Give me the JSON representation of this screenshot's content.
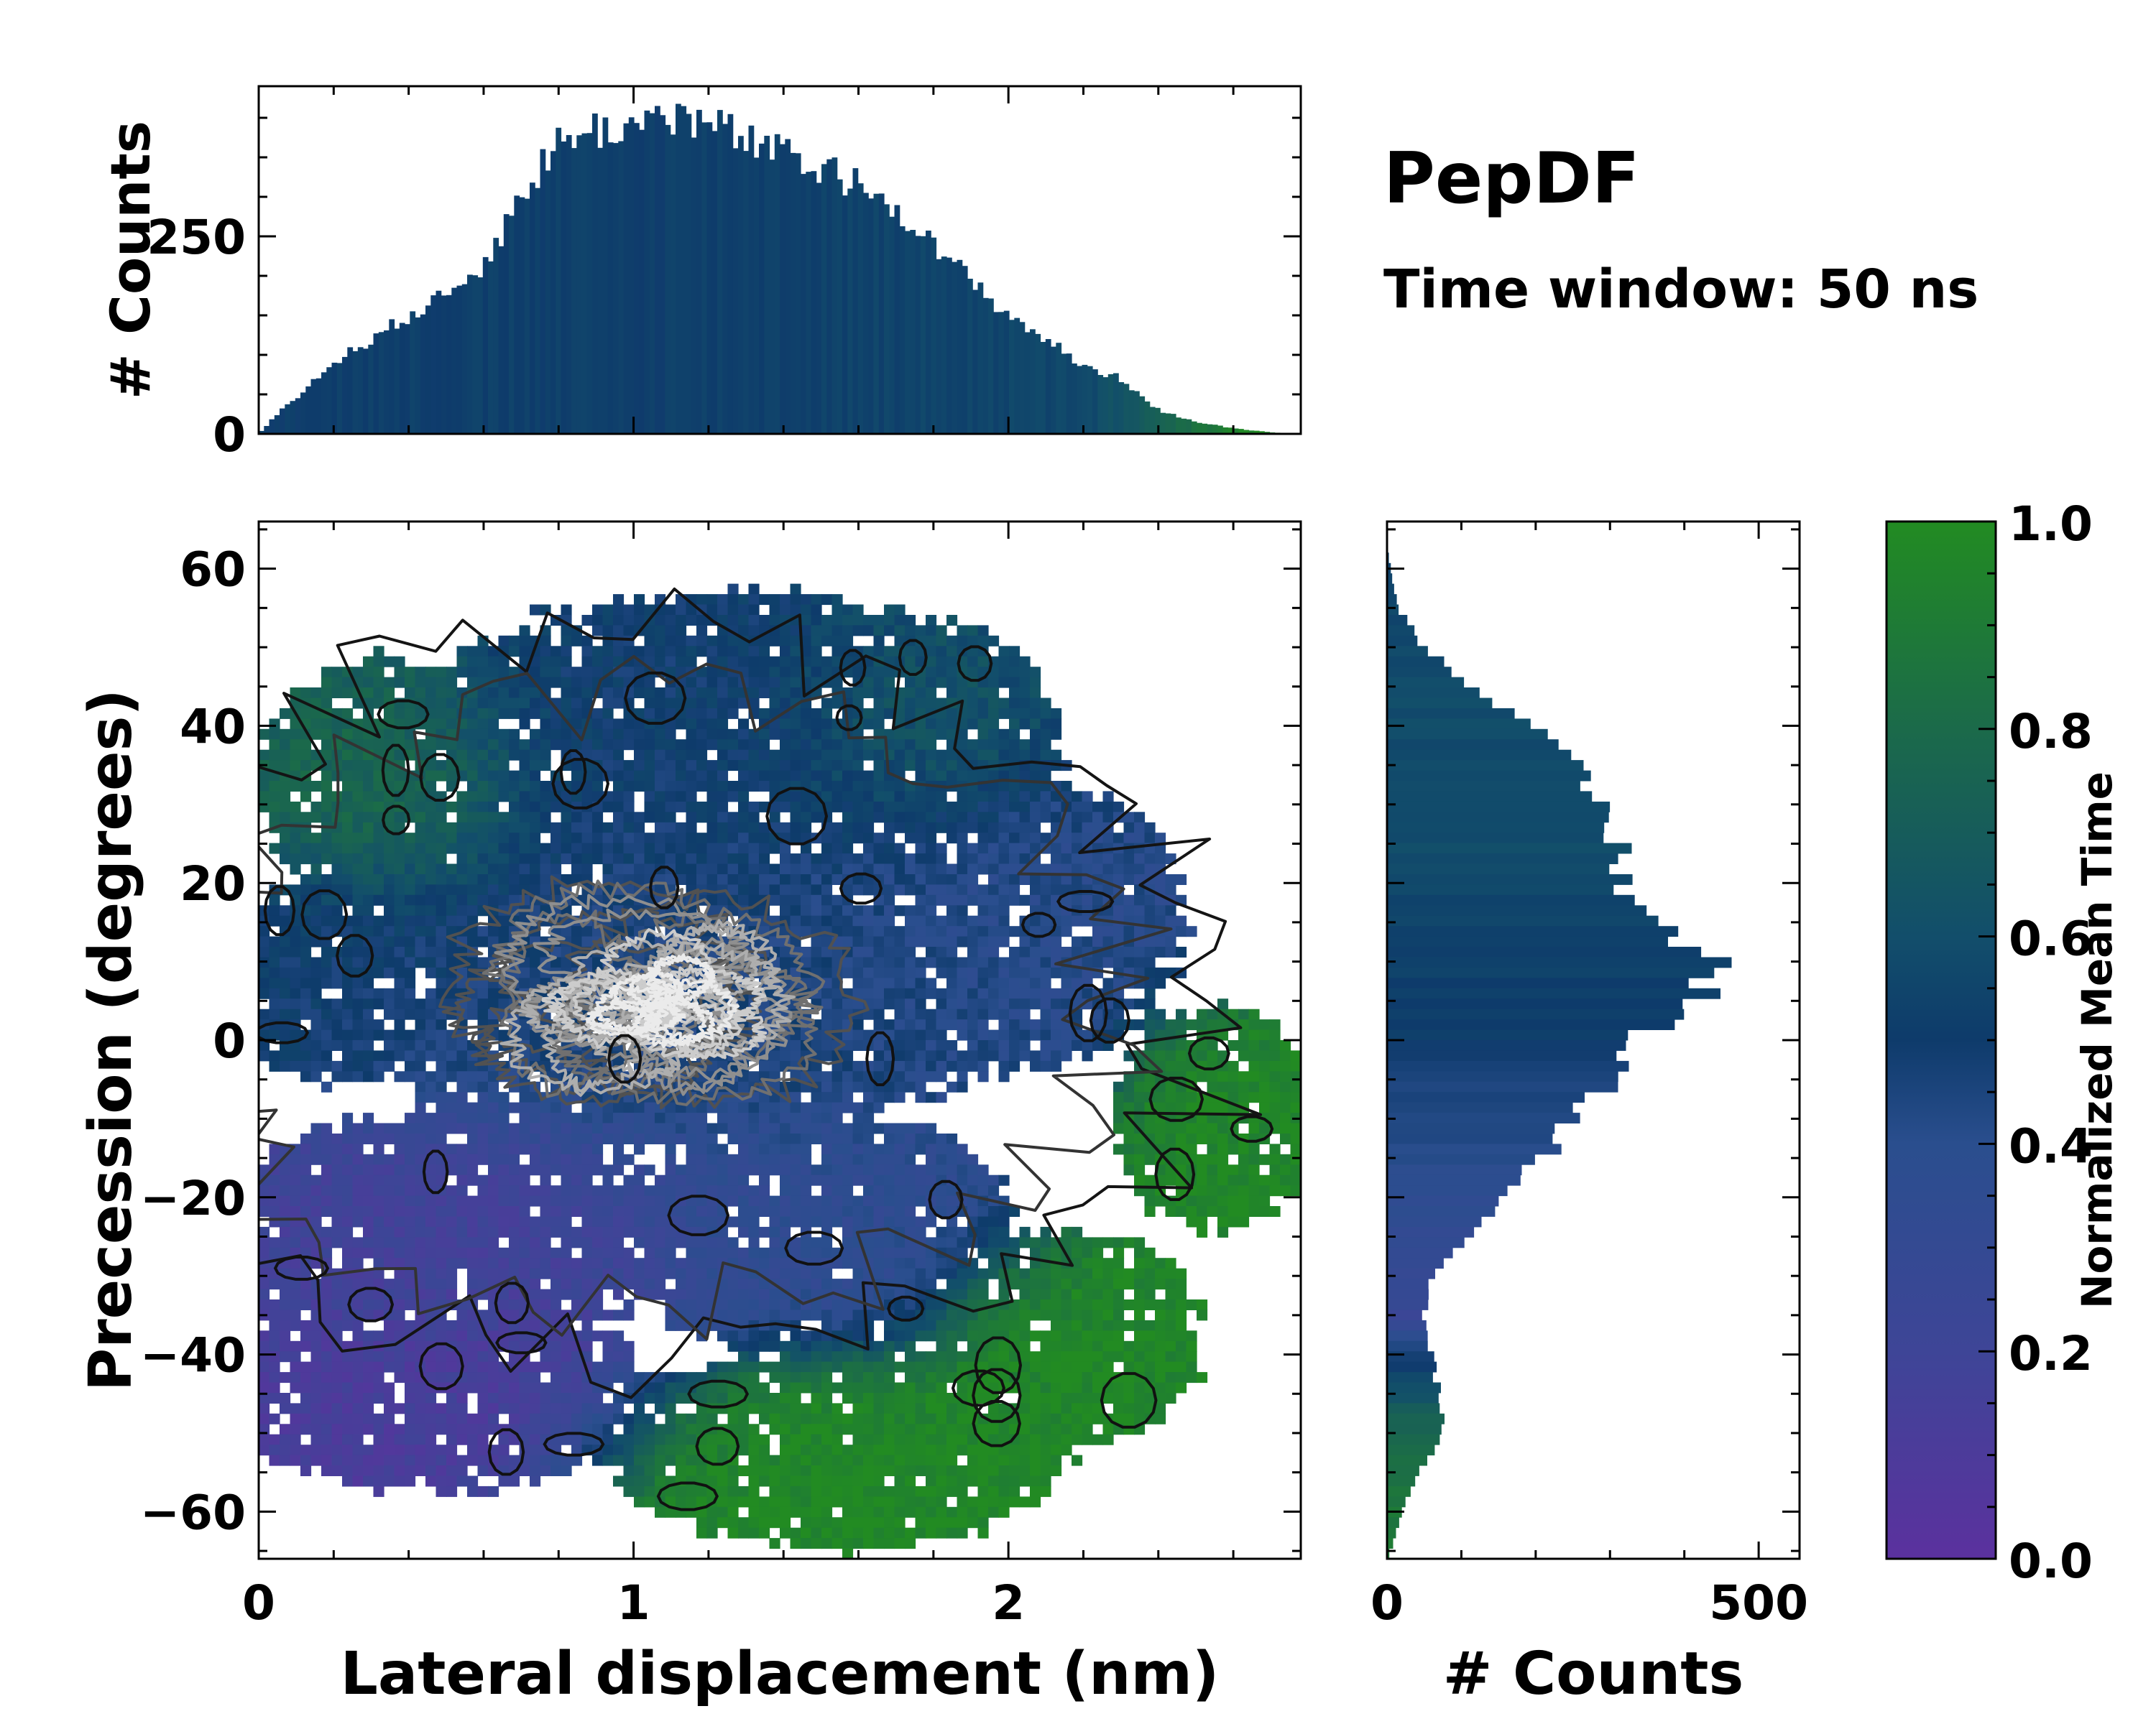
{
  "chart_data": [
    {
      "panel": "top-marginal",
      "type": "bar",
      "ylabel": "# Counts",
      "xlim": [
        0,
        2.78
      ],
      "ylim": [
        0,
        440
      ],
      "yticks": [
        0,
        250
      ],
      "ytick_labels": [
        "0",
        "250"
      ],
      "bin_width": 0.0139,
      "x_profile": [
        [
          0.0,
          0
        ],
        [
          0.05,
          25
        ],
        [
          0.2,
          90
        ],
        [
          0.35,
          135
        ],
        [
          0.5,
          175
        ],
        [
          0.6,
          215
        ],
        [
          0.7,
          300
        ],
        [
          0.8,
          370
        ],
        [
          0.9,
          385
        ],
        [
          1.0,
          390
        ],
        [
          1.1,
          405
        ],
        [
          1.2,
          392
        ],
        [
          1.3,
          372
        ],
        [
          1.4,
          352
        ],
        [
          1.5,
          335
        ],
        [
          1.6,
          315
        ],
        [
          1.7,
          292
        ],
        [
          1.8,
          235
        ],
        [
          1.9,
          195
        ],
        [
          2.0,
          150
        ],
        [
          2.1,
          120
        ],
        [
          2.2,
          85
        ],
        [
          2.3,
          70
        ],
        [
          2.4,
          30
        ],
        [
          2.5,
          15
        ],
        [
          2.6,
          7
        ],
        [
          2.7,
          2
        ],
        [
          2.78,
          0
        ]
      ],
      "mean_time_profile": [
        [
          0.0,
          0.52
        ],
        [
          1.0,
          0.52
        ],
        [
          2.2,
          0.56
        ],
        [
          2.4,
          0.72
        ],
        [
          2.6,
          0.95
        ],
        [
          2.78,
          1.0
        ]
      ]
    },
    {
      "panel": "main",
      "type": "heatmap",
      "xlabel": "Lateral displacement (nm)",
      "ylabel": "Precession (degrees)",
      "xlim": [
        0,
        2.78
      ],
      "ylim": [
        -66,
        66
      ],
      "xticks": [
        0,
        1,
        2
      ],
      "xtick_labels": [
        "0",
        "1",
        "2"
      ],
      "yticks": [
        60,
        40,
        20,
        0,
        -20,
        -40,
        -60
      ],
      "ytick_labels": [
        "60",
        "40",
        "20",
        "0",
        "−20",
        "−40",
        "−60"
      ],
      "cell_size": {
        "x": 0.0278,
        "y": 1.32
      },
      "regions": [
        {
          "name": "upper-left",
          "cx": 0.35,
          "cy": 33,
          "rx": 0.34,
          "ry": 15,
          "t": 0.8
        },
        {
          "name": "upper-center",
          "cx": 1.25,
          "cy": 38,
          "rx": 0.85,
          "ry": 18,
          "t": 0.5
        },
        {
          "name": "upper-right",
          "cx": 1.75,
          "cy": 40,
          "rx": 0.35,
          "ry": 13,
          "t": 0.68
        },
        {
          "name": "center",
          "cx": 1.1,
          "cy": 8,
          "rx": 0.95,
          "ry": 20,
          "t": 0.45
        },
        {
          "name": "left-middle",
          "cx": 0.2,
          "cy": 8,
          "rx": 0.3,
          "ry": 13,
          "t": 0.5
        },
        {
          "name": "right-middle",
          "cx": 2.0,
          "cy": 15,
          "rx": 0.45,
          "ry": 18,
          "t": 0.4
        },
        {
          "name": "lower-left",
          "cx": 0.5,
          "cy": -25,
          "rx": 0.6,
          "ry": 15,
          "t": 0.18
        },
        {
          "name": "bottom-left",
          "cx": 0.48,
          "cy": -45,
          "rx": 0.55,
          "ry": 12,
          "t": 0.12
        },
        {
          "name": "lower-center",
          "cx": 1.5,
          "cy": -25,
          "rx": 0.5,
          "ry": 15,
          "t": 0.35
        },
        {
          "name": "bottom-center",
          "cx": 1.55,
          "cy": -52,
          "rx": 0.6,
          "ry": 12,
          "t": 0.98
        },
        {
          "name": "lower-right",
          "cx": 2.15,
          "cy": -38,
          "rx": 0.35,
          "ry": 13,
          "t": 0.97
        },
        {
          "name": "right-low",
          "cx": 2.55,
          "cy": -10,
          "rx": 0.25,
          "ry": 14,
          "t": 0.97
        }
      ],
      "density_peak": {
        "x": 1.05,
        "y": 5,
        "sx": 0.45,
        "sy": 14
      },
      "contour_style": "isolines of point density, dark grey (low) to white (high)"
    },
    {
      "panel": "right-marginal",
      "type": "bar",
      "orientation": "horizontal",
      "xlabel": "# Counts",
      "xlim": [
        0,
        555
      ],
      "ylim": [
        -66,
        66
      ],
      "xticks": [
        0,
        500
      ],
      "xtick_labels": [
        "0",
        "500"
      ],
      "bin_width": 1.32,
      "y_profile": [
        [
          63,
          0
        ],
        [
          60,
          5
        ],
        [
          55,
          15
        ],
        [
          50,
          50
        ],
        [
          45,
          120
        ],
        [
          40,
          190
        ],
        [
          35,
          245
        ],
        [
          30,
          285
        ],
        [
          25,
          310
        ],
        [
          20,
          320
        ],
        [
          15,
          360
        ],
        [
          10,
          435
        ],
        [
          5,
          430
        ],
        [
          0,
          340
        ],
        [
          -5,
          300
        ],
        [
          -10,
          250
        ],
        [
          -15,
          210
        ],
        [
          -20,
          165
        ],
        [
          -25,
          115
        ],
        [
          -30,
          60
        ],
        [
          -35,
          50
        ],
        [
          -40,
          60
        ],
        [
          -45,
          70
        ],
        [
          -50,
          75
        ],
        [
          -55,
          40
        ],
        [
          -60,
          20
        ],
        [
          -65,
          5
        ],
        [
          -66,
          0
        ]
      ],
      "mean_time_profile": [
        [
          63,
          0.55
        ],
        [
          30,
          0.6
        ],
        [
          15,
          0.55
        ],
        [
          0,
          0.5
        ],
        [
          -15,
          0.4
        ],
        [
          -30,
          0.28
        ],
        [
          -35,
          0.25
        ],
        [
          -40,
          0.45
        ],
        [
          -47,
          0.7
        ],
        [
          -55,
          0.85
        ],
        [
          -66,
          0.9
        ]
      ]
    },
    {
      "panel": "colorbar",
      "type": "colorbar",
      "label": "Normalized Mean Time",
      "range": [
        0.0,
        1.0
      ],
      "ticks": [
        0.0,
        0.2,
        0.4,
        0.6,
        0.8,
        1.0
      ],
      "tick_labels": [
        "0.0",
        "0.2",
        "0.4",
        "0.6",
        "0.8",
        "1.0"
      ],
      "colormap": [
        [
          0.0,
          "#5b319e"
        ],
        [
          0.2,
          "#3e4597"
        ],
        [
          0.4,
          "#2a4e8e"
        ],
        [
          0.5,
          "#0e3b6b"
        ],
        [
          0.6,
          "#124e6b"
        ],
        [
          0.8,
          "#1b6a4a"
        ],
        [
          1.0,
          "#228b22"
        ]
      ]
    }
  ],
  "annotations": {
    "title": "PepDF",
    "subtitle": "Time window: 50 ns"
  }
}
